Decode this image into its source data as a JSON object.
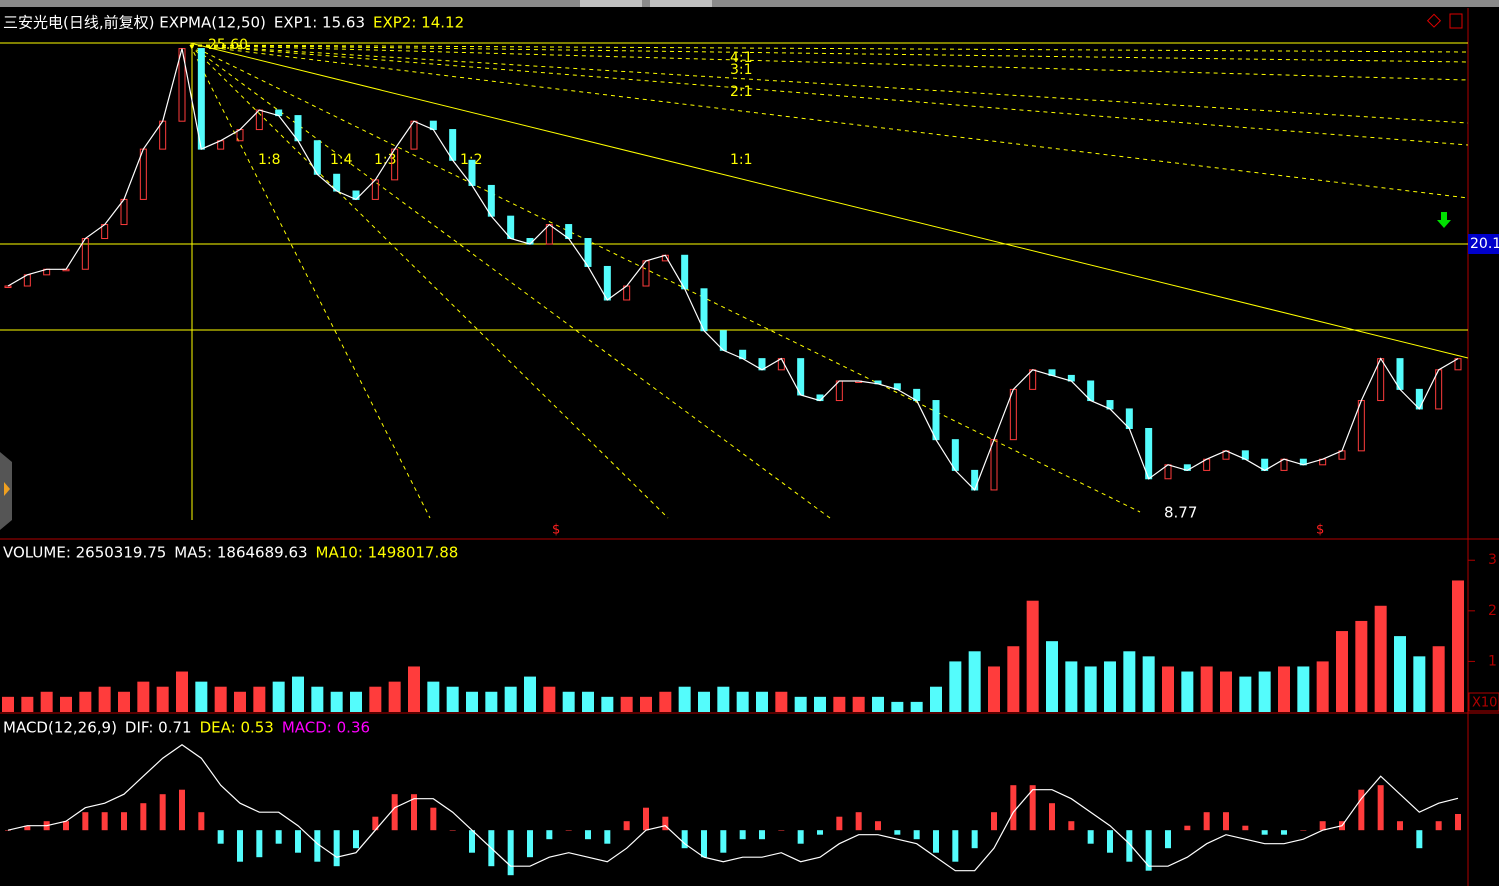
{
  "chart_data": [
    {
      "type": "line",
      "title": "三安光电(日线,前复权) EXPMA(12,50)",
      "indicators": [
        {
          "text": "EXP1: 15.63",
          "color": "#ffffff"
        },
        {
          "text": "EXP2: 14.12",
          "color": "#ffff00"
        }
      ],
      "up_color": "#ff3c3c",
      "down_color": "#54fcfc",
      "color": "#ffffff",
      "values": [
        16.9,
        17.3,
        17.5,
        17.5,
        18.6,
        19.1,
        20.0,
        21.8,
        22.8,
        25.4,
        21.8,
        22.1,
        22.5,
        23.2,
        23.0,
        22.1,
        20.9,
        20.3,
        20.0,
        20.7,
        21.8,
        22.8,
        22.5,
        21.4,
        20.5,
        19.4,
        18.6,
        18.4,
        19.1,
        18.6,
        17.6,
        16.4,
        16.9,
        17.8,
        18.0,
        16.8,
        15.3,
        14.6,
        14.3,
        13.9,
        14.3,
        13.0,
        12.8,
        13.5,
        13.5,
        13.4,
        13.2,
        12.8,
        11.4,
        10.3,
        9.6,
        11.4,
        13.2,
        13.9,
        13.7,
        13.5,
        12.8,
        12.5,
        11.8,
        10.0,
        10.5,
        10.3,
        10.7,
        11.0,
        10.7,
        10.3,
        10.7,
        10.5,
        10.7,
        11.0,
        12.8,
        14.3,
        13.2,
        12.5,
        13.9,
        14.3
      ],
      "ylim": [
        7.88,
        26.78
      ],
      "annotations": [
        "25.60",
        "8.77",
        "1:8",
        "1:4",
        "1:3",
        "1:2",
        "1:1",
        "2:1",
        "3:1",
        "4:1",
        "20.1"
      ]
    },
    {
      "type": "bar",
      "title": "VOLUME: 2650319.75",
      "indicators": [
        {
          "text": "MA5: 1864689.63",
          "color": "#ffffff"
        },
        {
          "text": "MA10: 1498017.88",
          "color": "#ffff00"
        }
      ],
      "values": [
        0.3,
        0.3,
        0.4,
        0.3,
        0.4,
        0.5,
        0.4,
        0.6,
        0.5,
        0.8,
        0.6,
        0.5,
        0.4,
        0.5,
        0.6,
        0.7,
        0.5,
        0.4,
        0.4,
        0.5,
        0.6,
        0.9,
        0.6,
        0.5,
        0.4,
        0.4,
        0.5,
        0.7,
        0.5,
        0.4,
        0.4,
        0.3,
        0.3,
        0.3,
        0.4,
        0.5,
        0.4,
        0.5,
        0.4,
        0.4,
        0.4,
        0.3,
        0.3,
        0.3,
        0.3,
        0.3,
        0.2,
        0.2,
        0.5,
        1.0,
        1.2,
        0.9,
        1.3,
        2.2,
        1.4,
        1.0,
        0.9,
        1.0,
        1.2,
        1.1,
        0.9,
        0.8,
        0.9,
        0.8,
        0.7,
        0.8,
        0.9,
        0.9,
        1.0,
        1.6,
        1.8,
        2.1,
        1.5,
        1.1,
        1.3,
        2.6
      ],
      "ylim": [
        0,
        3.4
      ],
      "yticks": [
        1,
        2,
        3
      ],
      "unit_label": "X10"
    },
    {
      "type": "bar",
      "title": "MACD(12,26,9)",
      "indicators": [
        {
          "text": "DIF: 0.71",
          "color": "#ffffff"
        },
        {
          "text": "DEA: 0.53",
          "color": "#ffff00"
        },
        {
          "text": "MACD: 0.36",
          "color": "#ff00ff"
        }
      ],
      "values": [
        0,
        0.1,
        0.2,
        0.2,
        0.4,
        0.4,
        0.4,
        0.6,
        0.8,
        0.9,
        0.4,
        -0.3,
        -0.7,
        -0.6,
        -0.3,
        -0.5,
        -0.7,
        -0.8,
        -0.4,
        0.3,
        0.8,
        0.8,
        0.5,
        0,
        -0.5,
        -0.8,
        -1.0,
        -0.6,
        -0.2,
        0,
        -0.2,
        -0.3,
        0.2,
        0.5,
        0.3,
        -0.4,
        -0.6,
        -0.5,
        -0.2,
        -0.2,
        0,
        -0.3,
        -0.1,
        0.3,
        0.4,
        0.2,
        -0.1,
        -0.2,
        -0.5,
        -0.7,
        -0.4,
        0.4,
        1.0,
        1.0,
        0.6,
        0.2,
        -0.3,
        -0.5,
        -0.7,
        -0.9,
        -0.4,
        0.1,
        0.4,
        0.4,
        0.1,
        -0.1,
        -0.1,
        0,
        0.2,
        0.2,
        0.9,
        1.0,
        0.2,
        -0.4,
        0.2,
        0.36
      ],
      "lines": [
        {
          "color": "#ffffff",
          "values": [
            0,
            0.1,
            0.1,
            0.2,
            0.5,
            0.6,
            0.8,
            1.2,
            1.6,
            1.9,
            1.6,
            1.0,
            0.6,
            0.4,
            0.4,
            0.1,
            -0.3,
            -0.6,
            -0.5,
            0,
            0.5,
            0.7,
            0.7,
            0.4,
            0,
            -0.4,
            -0.8,
            -0.8,
            -0.6,
            -0.5,
            -0.6,
            -0.7,
            -0.4,
            0,
            0.1,
            -0.3,
            -0.6,
            -0.7,
            -0.6,
            -0.6,
            -0.5,
            -0.7,
            -0.6,
            -0.3,
            -0.1,
            -0.1,
            -0.2,
            -0.3,
            -0.6,
            -0.9,
            -0.9,
            -0.4,
            0.4,
            0.9,
            0.9,
            0.7,
            0.4,
            0.1,
            -0.3,
            -0.8,
            -0.8,
            -0.6,
            -0.3,
            -0.1,
            -0.2,
            -0.3,
            -0.3,
            -0.2,
            0,
            0.1,
            0.7,
            1.2,
            0.8,
            0.4,
            0.6,
            0.71
          ]
        }
      ],
      "ylim": [
        -1.24,
        2.56
      ]
    }
  ]
}
